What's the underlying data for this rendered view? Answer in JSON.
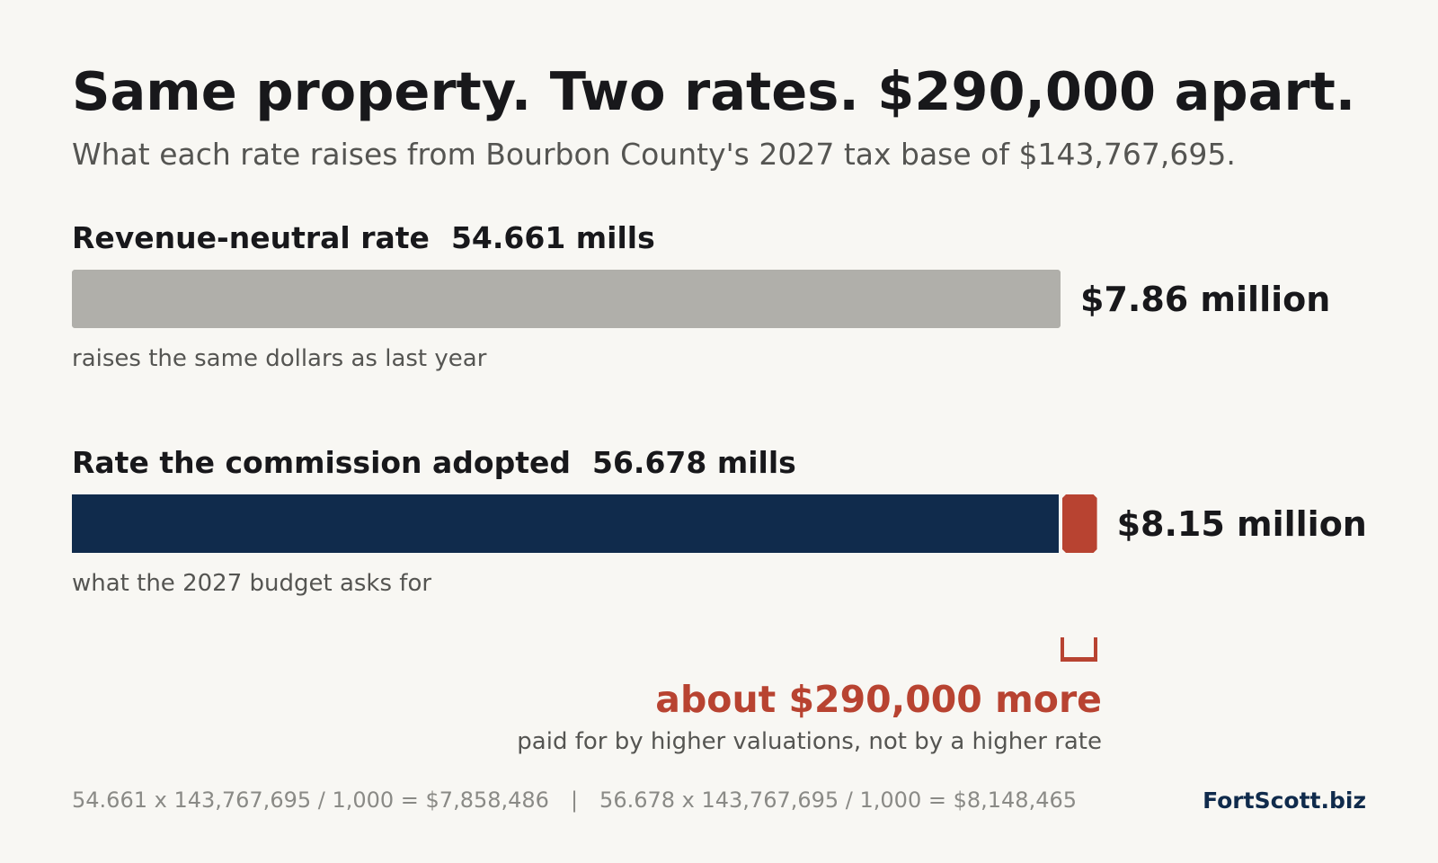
{
  "title": "Same property. Two rates. $290,000 apart.",
  "subtitle": "What each rate raises from Bourbon County's 2027 tax base of $143,767,695.",
  "rows": [
    {
      "label": "Revenue-neutral rate",
      "mills_text": "54.661 mills",
      "value_text": "$7.86 million",
      "note": "raises the same dollars as last year"
    },
    {
      "label": "Rate the commission adopted",
      "mills_text": "56.678 mills",
      "value_text": "$8.15 million",
      "note": "what the 2027 budget asks for"
    }
  ],
  "difference": {
    "label": "about $290,000 more",
    "note": "paid for by higher valuations, not by a higher rate"
  },
  "footnote": {
    "calc_neutral": "54.661 x 143,767,695 / 1,000 = $7,858,486",
    "separator": "|",
    "calc_adopted": "56.678 x 143,767,695 / 1,000 = $8,148,465"
  },
  "brand": "FortScott.biz",
  "colors": {
    "neutral_bar": "#b0afaa",
    "adopted_bar": "#102b4c",
    "difference": "#b84331",
    "brand": "#102b4c"
  },
  "chart_data": {
    "type": "bar",
    "orientation": "horizontal",
    "categories": [
      "Revenue-neutral rate",
      "Rate the commission adopted"
    ],
    "rates_mills": [
      54.661,
      56.678
    ],
    "values": [
      7858486,
      8148465
    ],
    "difference": 289979,
    "tax_base": 143767695,
    "title": "Same property. Two rates. $290,000 apart.",
    "subtitle": "What each rate raises from Bourbon County's 2027 tax base of $143,767,695.",
    "xlabel": "",
    "ylabel": "",
    "grid": false
  }
}
